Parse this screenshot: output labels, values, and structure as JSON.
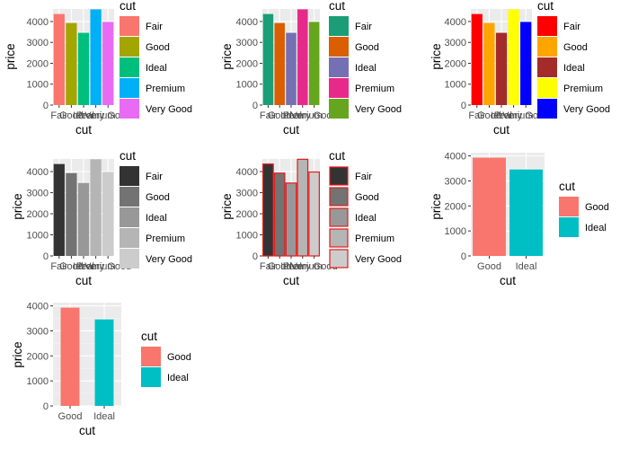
{
  "figure": "Grid of ggplot2 bar charts: price by cut with different fill scales",
  "chart_data": [
    {
      "type": "bar",
      "panel": "default-hue-5",
      "categories": [
        "Fair",
        "Good",
        "Ideal",
        "Premium",
        "Very Good"
      ],
      "values": [
        4359,
        3929,
        3458,
        4584,
        3982
      ],
      "xlabel": "cut",
      "ylabel": "price",
      "yticks": [
        0,
        1000,
        2000,
        3000,
        4000
      ],
      "ylim": [
        0,
        4600
      ],
      "legend_title": "cut",
      "legend_position": "right",
      "fills": [
        "#F8766D",
        "#A3A500",
        "#00BF7D",
        "#00B0F6",
        "#E76BF3"
      ],
      "outline": null
    },
    {
      "type": "bar",
      "panel": "brewer-dark2",
      "categories": [
        "Fair",
        "Good",
        "Ideal",
        "Premium",
        "Very Good"
      ],
      "values": [
        4359,
        3929,
        3458,
        4584,
        3982
      ],
      "xlabel": "cut",
      "ylabel": "price",
      "yticks": [
        0,
        1000,
        2000,
        3000,
        4000
      ],
      "ylim": [
        0,
        4600
      ],
      "legend_title": "cut",
      "legend_position": "right",
      "fills": [
        "#1B9E77",
        "#D95F02",
        "#7570B3",
        "#E7298A",
        "#66A61E"
      ],
      "outline": null
    },
    {
      "type": "bar",
      "panel": "manual-colors",
      "categories": [
        "Fair",
        "Good",
        "Ideal",
        "Premium",
        "Very Good"
      ],
      "values": [
        4359,
        3929,
        3458,
        4584,
        3982
      ],
      "xlabel": "cut",
      "ylabel": "price",
      "yticks": [
        0,
        1000,
        2000,
        3000,
        4000
      ],
      "ylim": [
        0,
        4600
      ],
      "legend_title": "cut",
      "legend_position": "right",
      "fills": [
        "#FF0000",
        "#FFA500",
        "#A52A2A",
        "#FFFF00",
        "#0000FF"
      ],
      "outline": null
    },
    {
      "type": "bar",
      "panel": "grey-scale",
      "categories": [
        "Fair",
        "Good",
        "Ideal",
        "Premium",
        "Very Good"
      ],
      "values": [
        4359,
        3929,
        3458,
        4584,
        3982
      ],
      "xlabel": "cut",
      "ylabel": "price",
      "yticks": [
        0,
        1000,
        2000,
        3000,
        4000
      ],
      "ylim": [
        0,
        4600
      ],
      "legend_title": "cut",
      "legend_position": "right",
      "fills": [
        "#333333",
        "#737373",
        "#989898",
        "#B5B5B5",
        "#CCCCCC"
      ],
      "outline": null
    },
    {
      "type": "bar",
      "panel": "grey-scale-red-outline",
      "categories": [
        "Fair",
        "Good",
        "Ideal",
        "Premium",
        "Very Good"
      ],
      "values": [
        4359,
        3929,
        3458,
        4584,
        3982
      ],
      "xlabel": "cut",
      "ylabel": "price",
      "yticks": [
        0,
        1000,
        2000,
        3000,
        4000
      ],
      "ylim": [
        0,
        4600
      ],
      "legend_title": "cut",
      "legend_position": "right",
      "fills": [
        "#333333",
        "#737373",
        "#989898",
        "#B5B5B5",
        "#CCCCCC"
      ],
      "outline": "#E31A1C"
    },
    {
      "type": "bar",
      "panel": "good-vs-ideal-wide",
      "categories": [
        "Good",
        "Ideal"
      ],
      "values": [
        3929,
        3458
      ],
      "xlabel": "cut",
      "ylabel": "price",
      "yticks": [
        0,
        1000,
        2000,
        3000,
        4000
      ],
      "ylim": [
        0,
        4130
      ],
      "legend_title": "cut",
      "legend_position": "right",
      "fills": [
        "#F8766D",
        "#00BFC4"
      ],
      "outline": null
    },
    {
      "type": "bar",
      "panel": "good-vs-ideal-narrow",
      "categories": [
        "Good",
        "Ideal"
      ],
      "values": [
        3929,
        3458
      ],
      "xlabel": "cut",
      "ylabel": "price",
      "yticks": [
        0,
        1000,
        2000,
        3000,
        4000
      ],
      "ylim": [
        0,
        4130
      ],
      "legend_title": "cut",
      "legend_position": "right",
      "fills": [
        "#F8766D",
        "#00BFC4"
      ],
      "outline": null
    }
  ]
}
